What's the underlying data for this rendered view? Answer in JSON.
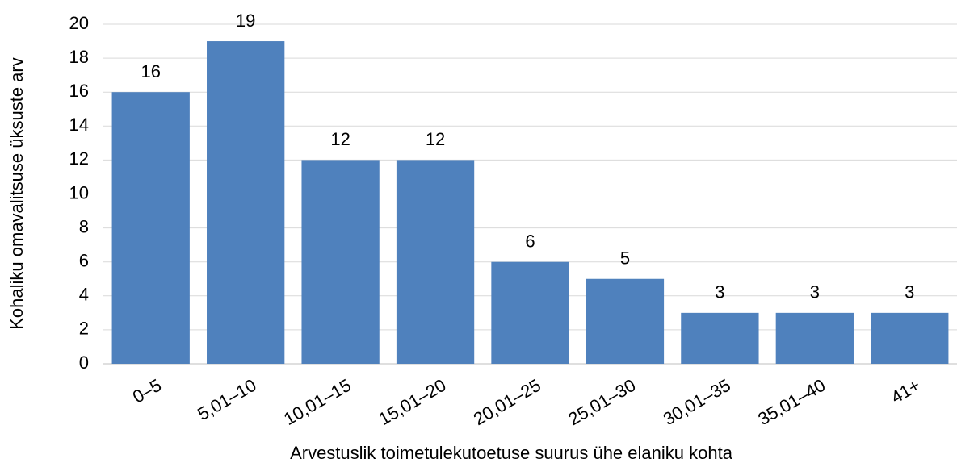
{
  "chart_data": {
    "type": "bar",
    "categories": [
      "0–5",
      "5,01–10",
      "10,01–15",
      "15,01–20",
      "20,01–25",
      "25,01–30",
      "30,01–35",
      "35,01–40",
      "41+"
    ],
    "values": [
      16,
      19,
      12,
      12,
      6,
      5,
      3,
      3,
      3
    ],
    "color": "#4f81bd",
    "ylim": [
      0,
      20
    ],
    "yticks": [
      0,
      2,
      4,
      6,
      8,
      10,
      12,
      14,
      16,
      18,
      20
    ],
    "grid": true,
    "x_label": "Arvestuslik toimetulekutoetuse suurus ühe elaniku kohta",
    "y_label": "Kohaliku omavalitsuse üksuste arv"
  }
}
